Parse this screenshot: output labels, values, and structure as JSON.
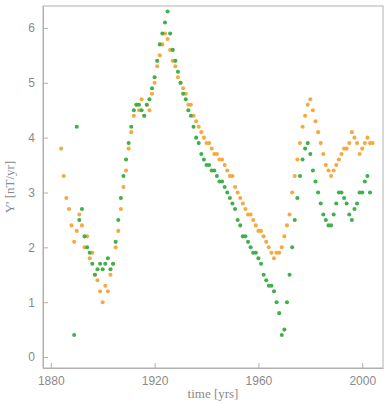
{
  "chart_data": {
    "type": "scatter",
    "x_label": "time [yrs]",
    "y_label": "Y' [nT/yr]",
    "xlim": [
      1877,
      2008
    ],
    "xticks": [
      1880,
      1920,
      1960,
      2000
    ],
    "ylim": [
      -0.2,
      6.4
    ],
    "yticks": [
      0,
      1,
      2,
      3,
      4,
      5,
      6
    ],
    "grid": false,
    "marker": "circle",
    "series": [
      {
        "color": "#f5a93e",
        "x": [
          1884,
          1885,
          1886,
          1887,
          1888,
          1889,
          1890,
          1891,
          1892,
          1893,
          1894,
          1895,
          1896,
          1897,
          1898,
          1899,
          1900,
          1901,
          1902,
          1903,
          1904,
          1905,
          1906,
          1907,
          1908,
          1909,
          1910,
          1911,
          1912,
          1913,
          1914,
          1915,
          1916,
          1917,
          1918,
          1919,
          1920,
          1921,
          1922,
          1923,
          1924,
          1925,
          1926,
          1927,
          1928,
          1929,
          1930,
          1931,
          1932,
          1933,
          1934,
          1935,
          1936,
          1937,
          1938,
          1939,
          1940,
          1941,
          1942,
          1943,
          1944,
          1945,
          1946,
          1947,
          1948,
          1949,
          1950,
          1951,
          1952,
          1953,
          1954,
          1955,
          1956,
          1957,
          1958,
          1959,
          1960,
          1961,
          1962,
          1963,
          1964,
          1965,
          1966,
          1967,
          1968,
          1969,
          1970,
          1971,
          1972,
          1973,
          1974,
          1975,
          1976,
          1977,
          1978,
          1979,
          1980,
          1981,
          1982,
          1983,
          1984,
          1985,
          1986,
          1987,
          1988,
          1989,
          1990,
          1991,
          1992,
          1993,
          1994,
          1995,
          1996,
          1997,
          1998,
          1999,
          2000,
          2001,
          2002,
          2003,
          2004
        ],
        "values": [
          3.8,
          3.3,
          2.9,
          2.7,
          2.4,
          2.1,
          2.3,
          2.6,
          2.4,
          2.0,
          2.2,
          1.8,
          1.9,
          1.5,
          1.4,
          1.2,
          1.0,
          1.3,
          1.2,
          1.5,
          1.7,
          2.0,
          2.3,
          2.7,
          3.1,
          3.4,
          3.8,
          4.1,
          4.4,
          4.6,
          4.5,
          4.7,
          4.4,
          4.6,
          4.5,
          4.8,
          5.0,
          5.3,
          5.5,
          5.7,
          5.9,
          5.8,
          5.6,
          5.4,
          5.3,
          5.1,
          5.0,
          4.9,
          4.8,
          4.6,
          4.6,
          4.4,
          4.3,
          4.2,
          4.1,
          4.0,
          3.9,
          3.9,
          3.8,
          3.7,
          3.7,
          3.6,
          3.6,
          3.5,
          3.4,
          3.3,
          3.3,
          3.1,
          3.0,
          2.9,
          2.8,
          2.7,
          2.6,
          2.6,
          2.5,
          2.4,
          2.3,
          2.3,
          2.2,
          2.1,
          2.0,
          1.9,
          1.8,
          1.9,
          1.9,
          2.0,
          2.2,
          2.4,
          2.6,
          3.0,
          3.3,
          3.6,
          3.9,
          4.2,
          4.4,
          4.6,
          4.7,
          4.5,
          4.3,
          4.1,
          3.9,
          3.7,
          3.5,
          3.4,
          3.3,
          3.4,
          3.5,
          3.6,
          3.7,
          3.8,
          3.8,
          3.9,
          4.1,
          4.0,
          3.9,
          3.7,
          3.8,
          3.9,
          4.0,
          3.9,
          3.9
        ]
      },
      {
        "color": "#3fb04a",
        "x": [
          1889,
          1890,
          1891,
          1892,
          1893,
          1894,
          1895,
          1896,
          1897,
          1898,
          1899,
          1900,
          1901,
          1902,
          1903,
          1904,
          1905,
          1906,
          1907,
          1908,
          1909,
          1910,
          1911,
          1912,
          1913,
          1914,
          1915,
          1916,
          1917,
          1918,
          1919,
          1920,
          1921,
          1922,
          1923,
          1924,
          1925,
          1926,
          1927,
          1928,
          1929,
          1930,
          1931,
          1932,
          1933,
          1934,
          1935,
          1936,
          1937,
          1938,
          1939,
          1940,
          1941,
          1942,
          1943,
          1944,
          1945,
          1946,
          1947,
          1948,
          1949,
          1950,
          1951,
          1952,
          1953,
          1954,
          1955,
          1956,
          1957,
          1958,
          1959,
          1960,
          1961,
          1962,
          1963,
          1964,
          1965,
          1966,
          1967,
          1968,
          1969,
          1970,
          1971,
          1972,
          1973,
          1974,
          1975,
          1976,
          1977,
          1978,
          1979,
          1980,
          1981,
          1982,
          1983,
          1984,
          1985,
          1986,
          1987,
          1988,
          1989,
          1990,
          1991,
          1992,
          1993,
          1994,
          1995,
          1996,
          1997,
          1998,
          1999,
          2000,
          2001,
          2002,
          2003
        ],
        "values": [
          0.4,
          4.2,
          2.5,
          2.7,
          2.2,
          2.0,
          1.9,
          1.7,
          1.5,
          1.6,
          1.7,
          1.6,
          1.7,
          1.8,
          1.6,
          1.7,
          2.1,
          2.5,
          2.9,
          3.3,
          3.6,
          3.9,
          4.2,
          4.5,
          4.6,
          4.6,
          4.5,
          4.4,
          4.6,
          4.7,
          4.9,
          5.1,
          5.4,
          5.7,
          5.9,
          6.1,
          6.3,
          5.9,
          5.6,
          5.4,
          5.2,
          5.0,
          4.8,
          4.7,
          4.5,
          4.4,
          4.2,
          4.0,
          3.9,
          3.7,
          3.6,
          3.5,
          3.5,
          3.4,
          3.4,
          3.3,
          3.2,
          3.2,
          3.1,
          3.0,
          2.9,
          2.8,
          2.7,
          2.5,
          2.4,
          2.2,
          2.2,
          2.1,
          2.0,
          1.9,
          1.9,
          1.8,
          1.7,
          1.5,
          1.4,
          1.3,
          1.3,
          1.2,
          1.0,
          0.8,
          0.4,
          0.5,
          1.0,
          1.5,
          2.0,
          2.5,
          2.9,
          3.3,
          3.6,
          3.8,
          3.9,
          3.7,
          3.4,
          3.2,
          3.0,
          2.8,
          2.6,
          2.5,
          2.4,
          2.4,
          2.6,
          2.8,
          3.0,
          3.0,
          2.9,
          2.8,
          2.6,
          2.5,
          2.7,
          2.8,
          3.0,
          3.0,
          3.2,
          3.3,
          3.0
        ]
      }
    ]
  }
}
